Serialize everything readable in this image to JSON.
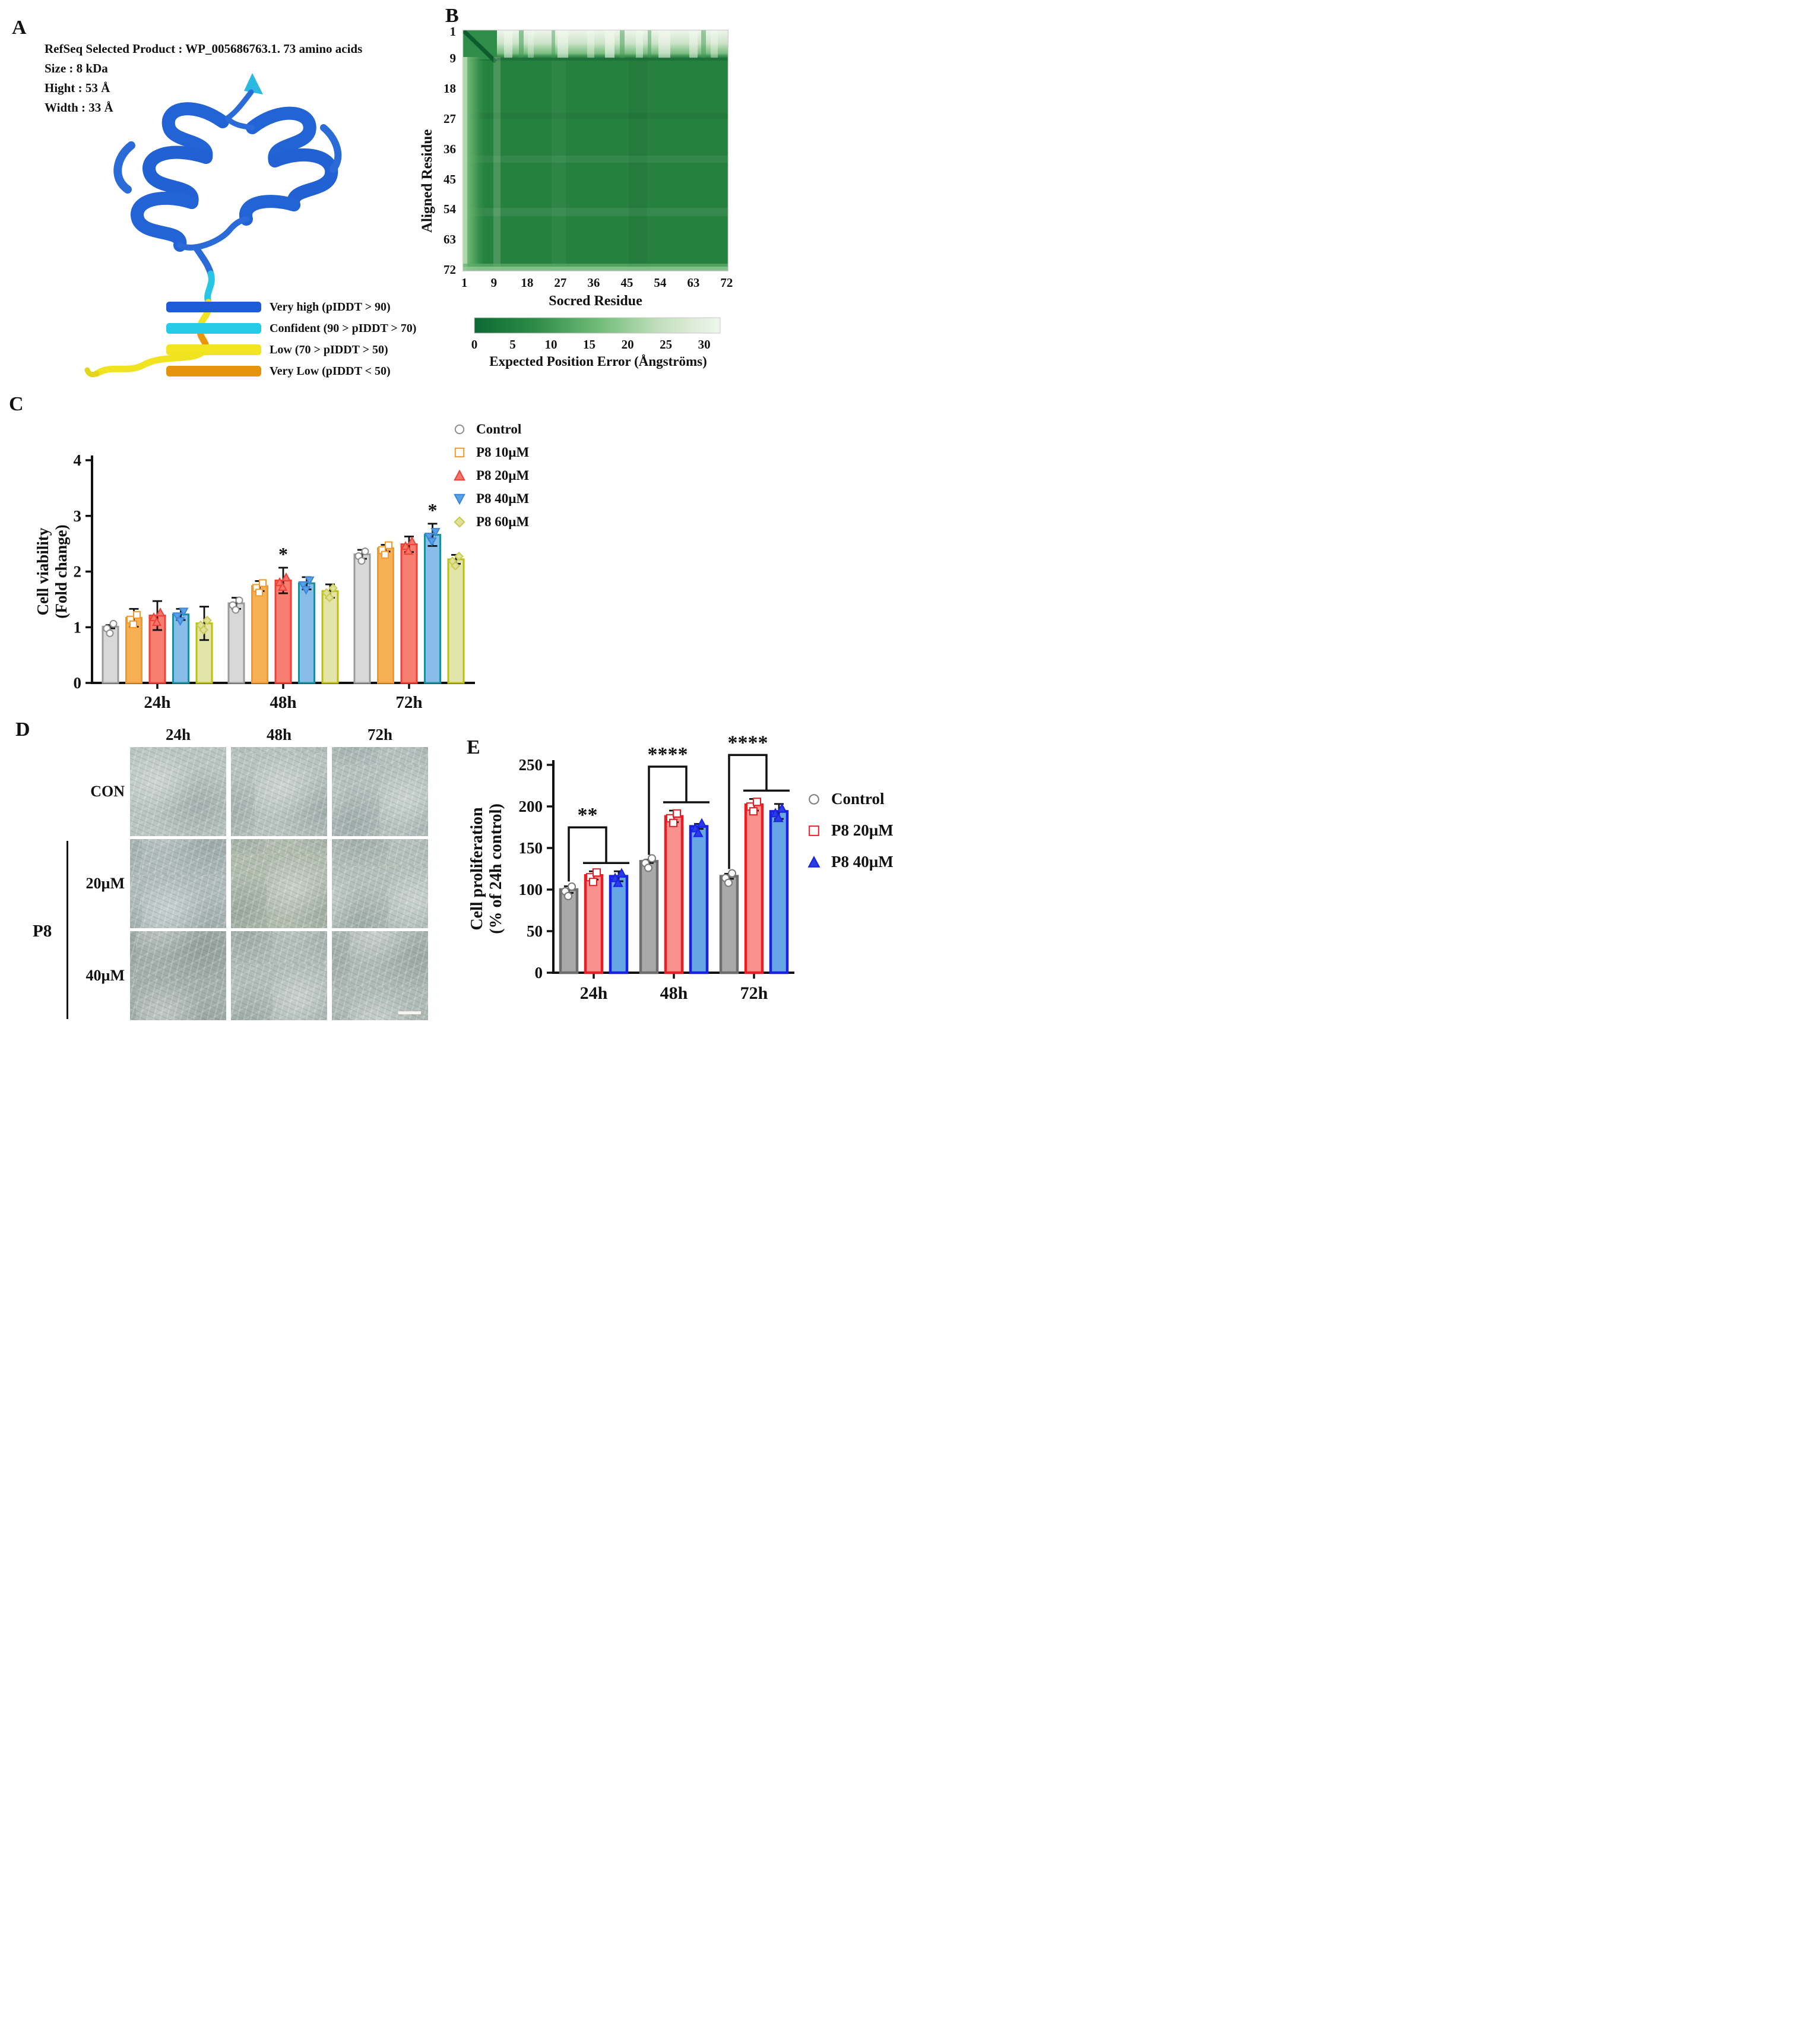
{
  "panels": {
    "A": {
      "label": "A",
      "info_lines": [
        "RefSeq Selected Product : WP_005686763.1. 73 amino acids",
        "Size : 8 kDa",
        "Hight : 53 Å",
        "Width : 33 Å"
      ],
      "plddt_legend": [
        {
          "label": "Very high (pIDDT > 90)",
          "color": "#1e5bd6"
        },
        {
          "label": "Confident (90 > pIDDT > 70)",
          "color": "#25cbe8"
        },
        {
          "label": "Low (70 > pIDDT > 50)",
          "color": "#f1e522"
        },
        {
          "label": "Very Low (pIDDT < 50)",
          "color": "#e6940b"
        }
      ]
    },
    "B": {
      "label": "B"
    },
    "C": {
      "label": "C"
    },
    "D": {
      "label": "D",
      "col_headers": [
        "24h",
        "48h",
        "72h"
      ],
      "row_labels": [
        "CON",
        "20µM",
        "40µM"
      ],
      "group_label": "P8"
    },
    "E": {
      "label": "E"
    }
  },
  "chart_data": [
    {
      "type": "heatmap",
      "panel": "B",
      "xlabel": "Socred Residue",
      "ylabel": "Aligned Residue",
      "n_residues": 72,
      "x_ticks": [
        1,
        9,
        18,
        27,
        36,
        45,
        54,
        63,
        72
      ],
      "y_ticks": [
        1,
        9,
        18,
        27,
        36,
        45,
        54,
        63,
        72
      ],
      "pattern": "predicted aligned error map: mostly low error (dark green ~3 Å) across the matrix; high error (light, ~20-30 Å) band over rows 1-8, lighter green band over columns 1-8, near-zero dark diagonal in top-left corner, light strip along bottom row 72",
      "colorbar": {
        "label": "Expected Position Error (Ångströms)",
        "ticks": [
          0,
          5,
          10,
          15,
          20,
          25,
          30
        ],
        "range": [
          0,
          30
        ],
        "low_color": "#0b6a33",
        "high_color": "#f0f6ed"
      }
    },
    {
      "type": "bar",
      "panel": "C",
      "categories": [
        "24h",
        "48h",
        "72h"
      ],
      "ylabel_lines": [
        "Cell viability",
        "(Fold change)"
      ],
      "ylim": [
        0,
        4
      ],
      "yticks": [
        0,
        1,
        2,
        3,
        4
      ],
      "series": [
        {
          "name": "Control",
          "fill": "#d8d8d8",
          "edge": "#9b9b9b",
          "values": [
            1.01,
            1.43,
            2.31
          ],
          "errors": [
            0.03,
            0.1,
            0.08
          ],
          "marker": {
            "shape": "circle",
            "fill": "#ffffff",
            "stroke": "#8e8e8e"
          }
        },
        {
          "name": "P8 10µM",
          "fill": "#f7b054",
          "edge": "#f2992e",
          "values": [
            1.17,
            1.74,
            2.42
          ],
          "errors": [
            0.16,
            0.09,
            0.06
          ],
          "marker": {
            "shape": "square",
            "fill": "#ffffff",
            "stroke": "#f2992e"
          }
        },
        {
          "name": "P8 20µM",
          "fill": "#f97e72",
          "edge": "#ef4136",
          "values": [
            1.21,
            1.84,
            2.49
          ],
          "errors": [
            0.26,
            0.23,
            0.14
          ],
          "marker": {
            "shape": "triangle-up",
            "fill": "#f4756b",
            "stroke": "#ef4136"
          }
        },
        {
          "name": "P8 40µM",
          "fill": "#88bce9",
          "edge": "#1b8fa2",
          "values": [
            1.23,
            1.79,
            2.66
          ],
          "errors": [
            0.1,
            0.11,
            0.2
          ],
          "marker": {
            "shape": "triangle-down",
            "fill": "#5aa0e6",
            "stroke": "#3c86d8"
          }
        },
        {
          "name": "P8 60µM",
          "fill": "#e3e4a9",
          "edge": "#bcbf0e",
          "values": [
            1.07,
            1.65,
            2.22
          ],
          "errors": [
            0.3,
            0.12,
            0.08
          ],
          "marker": {
            "shape": "diamond",
            "fill": "#dfe09a",
            "stroke": "#c9cb4f"
          }
        }
      ],
      "significance_stars": [
        {
          "category": "48h",
          "series": "P8 20µM",
          "text": "*"
        },
        {
          "category": "72h",
          "series": "P8 40µM",
          "text": "*"
        }
      ]
    },
    {
      "type": "bar",
      "panel": "E",
      "categories": [
        "24h",
        "48h",
        "72h"
      ],
      "ylabel_lines": [
        "Cell proliferation",
        "(% of 24h control)"
      ],
      "ylim": [
        0,
        250
      ],
      "yticks": [
        0,
        50,
        100,
        150,
        200,
        250
      ],
      "series": [
        {
          "name": "Control",
          "fill": "#a9a9a9",
          "edge": "#6e6e6e",
          "values": [
            100,
            134,
            116
          ],
          "errors": [
            4,
            2,
            3
          ],
          "marker": {
            "shape": "circle",
            "fill": "#ffffff",
            "stroke": "#7a7a7a"
          }
        },
        {
          "name": "P8 20µM",
          "fill": "#f9918c",
          "edge": "#ea1c24",
          "values": [
            117,
            188,
            202
          ],
          "errors": [
            5,
            7,
            7
          ],
          "marker": {
            "shape": "square",
            "fill": "#ffffff",
            "stroke": "#ea1c24"
          }
        },
        {
          "name": "P8 40µM",
          "fill": "#67a6e4",
          "edge": "#1822e4",
          "values": [
            116,
            176,
            194
          ],
          "errors": [
            6,
            3,
            9
          ],
          "marker": {
            "shape": "triangle-up",
            "fill": "#2b3be8",
            "stroke": "#1822e4"
          }
        }
      ],
      "significance_brackets": [
        {
          "category": "24h",
          "text": "**",
          "compare": [
            "Control",
            "P8 20µM",
            "P8 40µM"
          ]
        },
        {
          "category": "48h",
          "text": "****",
          "compare": [
            "Control",
            "P8 20µM",
            "P8 40µM"
          ]
        },
        {
          "category": "72h",
          "text": "****",
          "compare": [
            "Control",
            "P8 20µM",
            "P8 40µM"
          ]
        }
      ]
    }
  ]
}
